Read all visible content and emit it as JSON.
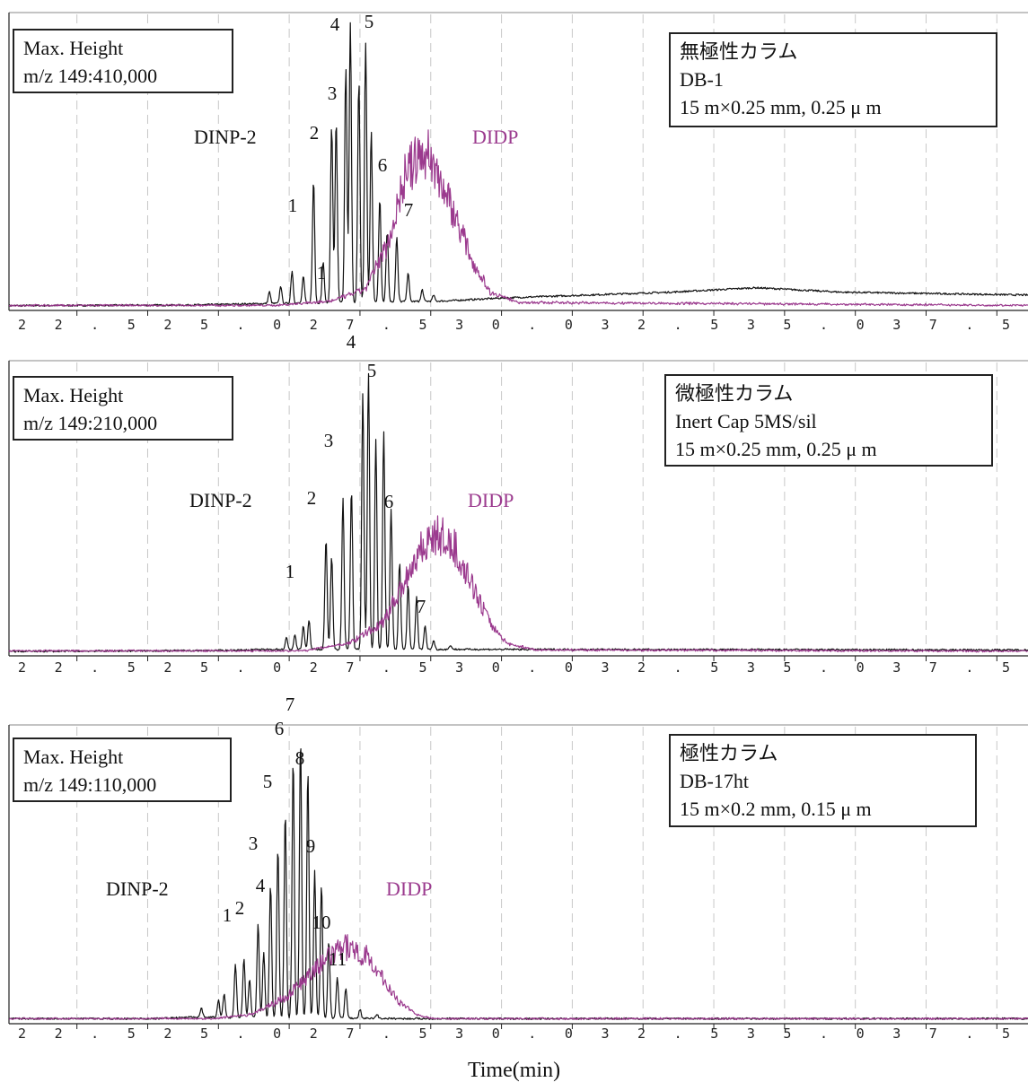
{
  "chart_data": [
    {
      "type": "line",
      "info_box": [
        "Max. Height",
        "m/z 149:410,000"
      ],
      "column_box": [
        "無極性カラム",
        "DB-1",
        "15 m×0.25 mm,  0.25  μ m"
      ],
      "series_labels": [
        "DINP-2",
        "DIDP"
      ],
      "peak_labels": [
        {
          "text": "1",
          "x": 26.3
        },
        {
          "text": "1",
          "x": 26.7
        },
        {
          "text": "2",
          "x": 26.75
        },
        {
          "text": "3",
          "x": 27.05
        },
        {
          "text": "4",
          "x": 27.3
        },
        {
          "text": "5",
          "x": 27.6
        },
        {
          "text": "6",
          "x": 27.82
        },
        {
          "text": "7",
          "x": 28.25
        }
      ],
      "tick_text": "2 2 . 5 2 5 . 0 2 7 . 5 3 0 . 0 3 2 . 5 3 5 . 0 3 7 . 5",
      "xlim": [
        21.3,
        39.3
      ],
      "ylim": [
        0,
        410000
      ],
      "series": [
        {
          "name": "DINP-2",
          "color": "#111111",
          "peaks": [
            [
              25.9,
              0.04
            ],
            [
              26.1,
              0.06
            ],
            [
              26.3,
              0.11
            ],
            [
              26.5,
              0.09
            ],
            [
              26.68,
              0.42
            ],
            [
              26.85,
              0.14
            ],
            [
              27.0,
              0.6
            ],
            [
              27.08,
              0.62
            ],
            [
              27.25,
              0.8
            ],
            [
              27.33,
              0.95
            ],
            [
              27.48,
              0.75
            ],
            [
              27.6,
              0.88
            ],
            [
              27.7,
              0.58
            ],
            [
              27.85,
              0.35
            ],
            [
              27.98,
              0.24
            ],
            [
              28.15,
              0.22
            ],
            [
              28.35,
              0.1
            ],
            [
              28.6,
              0.04
            ],
            [
              28.8,
              0.02
            ]
          ],
          "baseline": [
            [
              21.3,
              0.004
            ],
            [
              24.5,
              0.006
            ],
            [
              25.5,
              0.01
            ],
            [
              29.0,
              0.02
            ],
            [
              30.0,
              0.03
            ],
            [
              33.0,
              0.05
            ],
            [
              34.5,
              0.065
            ],
            [
              36.0,
              0.05
            ],
            [
              39.3,
              0.04
            ]
          ]
        },
        {
          "name": "DIDP",
          "color": "#9b3a8e",
          "envelope": [
            [
              26.0,
              0.005
            ],
            [
              27.0,
              0.02
            ],
            [
              27.6,
              0.06
            ],
            [
              28.0,
              0.22
            ],
            [
              28.3,
              0.45
            ],
            [
              28.5,
              0.5
            ],
            [
              28.7,
              0.52
            ],
            [
              28.9,
              0.44
            ],
            [
              29.2,
              0.3
            ],
            [
              29.5,
              0.15
            ],
            [
              29.8,
              0.05
            ],
            [
              30.3,
              0.015
            ],
            [
              39.3,
              0.005
            ]
          ]
        }
      ]
    },
    {
      "type": "line",
      "info_box": [
        "Max. Height",
        "m/z 149:210,000"
      ],
      "column_box": [
        "微極性カラム",
        "Inert Cap 5MS/sil",
        "15 m×0.25 mm,  0.25  μ m"
      ],
      "series_labels": [
        "DINP-2",
        "DIDP"
      ],
      "peak_labels": [
        {
          "text": "1",
          "x": 26.5
        },
        {
          "text": "2",
          "x": 26.85
        },
        {
          "text": "3",
          "x": 27.12
        },
        {
          "text": "4",
          "x": 27.42
        },
        {
          "text": "5",
          "x": 27.68
        },
        {
          "text": "6",
          "x": 28.0
        },
        {
          "text": "7",
          "x": 28.55
        }
      ],
      "tick_text": "2 2 . 5    2 5 . 0    2 7 . 5    3 0 . 0    3 2 . 5    3 5 . 0    3 7 . 5",
      "xlim": [
        21.3,
        39.3
      ],
      "ylim": [
        0,
        210000
      ],
      "series": [
        {
          "name": "DINP-2",
          "color": "#111111",
          "peaks": [
            [
              26.2,
              0.04
            ],
            [
              26.35,
              0.05
            ],
            [
              26.5,
              0.08
            ],
            [
              26.6,
              0.1
            ],
            [
              26.9,
              0.38
            ],
            [
              27.0,
              0.32
            ],
            [
              27.2,
              0.52
            ],
            [
              27.35,
              0.55
            ],
            [
              27.55,
              0.88
            ],
            [
              27.65,
              0.95
            ],
            [
              27.78,
              0.72
            ],
            [
              27.92,
              0.75
            ],
            [
              28.05,
              0.48
            ],
            [
              28.2,
              0.3
            ],
            [
              28.35,
              0.22
            ],
            [
              28.5,
              0.18
            ],
            [
              28.65,
              0.08
            ],
            [
              28.8,
              0.03
            ],
            [
              29.1,
              0.015
            ]
          ],
          "baseline": [
            [
              21.3,
              0.003
            ],
            [
              25.0,
              0.006
            ],
            [
              26.0,
              0.01
            ],
            [
              29.5,
              0.01
            ],
            [
              39.3,
              0.008
            ]
          ]
        },
        {
          "name": "DIDP",
          "color": "#9b3a8e",
          "envelope": [
            [
              26.5,
              0.005
            ],
            [
              27.3,
              0.03
            ],
            [
              27.9,
              0.1
            ],
            [
              28.3,
              0.25
            ],
            [
              28.6,
              0.37
            ],
            [
              28.9,
              0.4
            ],
            [
              29.2,
              0.35
            ],
            [
              29.5,
              0.22
            ],
            [
              29.8,
              0.1
            ],
            [
              30.1,
              0.03
            ],
            [
              30.6,
              0.008
            ],
            [
              39.3,
              0.004
            ]
          ]
        }
      ]
    },
    {
      "type": "line",
      "info_box": [
        "Max. Height",
        "m/z 149:110,000"
      ],
      "column_box": [
        "極性カラム",
        "DB-17ht",
        "15 m×0.2 mm,  0.15  μ m"
      ],
      "series_labels": [
        "DINP-2",
        "DIDP"
      ],
      "peak_labels": [
        {
          "text": "1",
          "x": 25.3
        },
        {
          "text": "2",
          "x": 25.48
        },
        {
          "text": "3",
          "x": 25.75
        },
        {
          "text": "4",
          "x": 25.9
        },
        {
          "text": "5",
          "x": 26.12
        },
        {
          "text": "6",
          "x": 26.3
        },
        {
          "text": "7",
          "x": 26.45
        },
        {
          "text": "8",
          "x": 26.62
        },
        {
          "text": "9",
          "x": 26.82
        },
        {
          "text": "10",
          "x": 26.98
        },
        {
          "text": "11",
          "x": 27.15
        }
      ],
      "tick_text": "2 2 . 5 2 5 . 0 2 7 . 5 3 0 . 0 3 2 . 5 3 5 . 0 3 7 . 5",
      "xlim": [
        21.3,
        39.3
      ],
      "ylim": [
        0,
        110000
      ],
      "series": [
        {
          "name": "DINP-2",
          "color": "#111111",
          "peaks": [
            [
              24.7,
              0.03
            ],
            [
              25.0,
              0.06
            ],
            [
              25.1,
              0.08
            ],
            [
              25.3,
              0.18
            ],
            [
              25.45,
              0.2
            ],
            [
              25.55,
              0.13
            ],
            [
              25.7,
              0.32
            ],
            [
              25.8,
              0.22
            ],
            [
              25.92,
              0.45
            ],
            [
              26.05,
              0.58
            ],
            [
              26.18,
              0.7
            ],
            [
              26.32,
              0.88
            ],
            [
              26.45,
              0.95
            ],
            [
              26.58,
              0.84
            ],
            [
              26.7,
              0.5
            ],
            [
              26.82,
              0.45
            ],
            [
              26.95,
              0.26
            ],
            [
              27.1,
              0.14
            ],
            [
              27.25,
              0.1
            ],
            [
              27.5,
              0.03
            ],
            [
              27.8,
              0.015
            ]
          ],
          "baseline": [
            [
              23.9,
              0.005
            ],
            [
              24.5,
              0.01
            ],
            [
              28.3,
              0.005
            ]
          ]
        },
        {
          "name": "DIDP",
          "color": "#9b3a8e",
          "envelope": [
            [
              24.9,
              0.005
            ],
            [
              25.6,
              0.02
            ],
            [
              26.2,
              0.08
            ],
            [
              26.7,
              0.17
            ],
            [
              27.0,
              0.22
            ],
            [
              27.3,
              0.25
            ],
            [
              27.6,
              0.22
            ],
            [
              27.9,
              0.14
            ],
            [
              28.2,
              0.06
            ],
            [
              28.5,
              0.02
            ],
            [
              28.8,
              0.005
            ]
          ]
        }
      ]
    }
  ],
  "xlabel": "Time(min)"
}
